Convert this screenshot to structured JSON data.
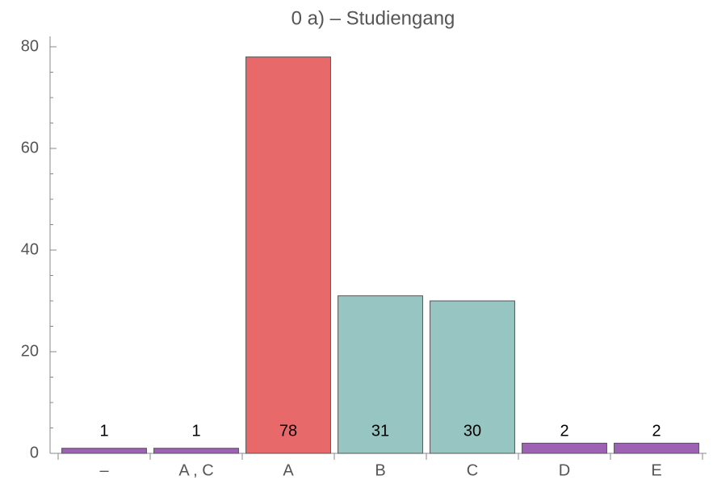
{
  "chart_data": {
    "type": "bar",
    "title": "0 a) – Studiengang",
    "categories": [
      "–",
      "A , C",
      "A",
      "B",
      "C",
      "D",
      "E"
    ],
    "values": [
      1,
      1,
      78,
      31,
      30,
      2,
      2
    ],
    "colors": [
      "#9d62b3",
      "#9d62b3",
      "#e8696a",
      "#97c5c1",
      "#97c5c1",
      "#9d62b3",
      "#9d62b3"
    ],
    "ylim": [
      0,
      80
    ],
    "yticks": [
      0,
      20,
      40,
      60,
      80
    ],
    "yminor_ticks": [
      5,
      10,
      15,
      25,
      30,
      35,
      45,
      50,
      55,
      65,
      70,
      75
    ],
    "grid": false
  }
}
